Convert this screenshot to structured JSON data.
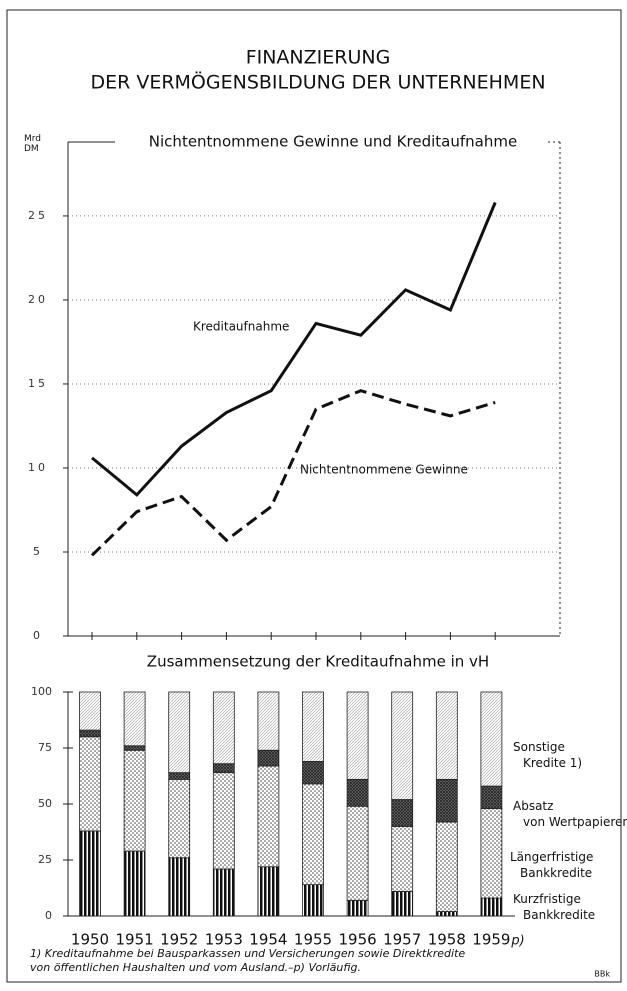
{
  "title": [
    "FINANZIERUNG",
    "DER VERMÖGENSBILDUNG DER UNTERNEHMEN"
  ],
  "footnote": [
    "1) Kreditaufnahme bei Bausparkassen und Versicherungen sowie Direktkredite",
    "von öffentlichen Haushalten und vom Ausland.–p) Vorläufig."
  ],
  "credit": "BBk",
  "chart_data": [
    {
      "type": "line",
      "title": "Nichtentnommene Gewinne und Kreditaufnahme",
      "ylabel": "Mrd DM",
      "categories": [
        "1950",
        "1951",
        "1952",
        "1953",
        "1954",
        "1955",
        "1956",
        "1957",
        "1958",
        "1959"
      ],
      "ylim": [
        0,
        29.4
      ],
      "yticks": [
        0,
        5,
        10,
        15,
        20,
        25
      ],
      "grid": true,
      "series": [
        {
          "name": "Kreditaufnahme",
          "color": "#111111",
          "dash": false,
          "values": [
            10.6,
            8.4,
            11.3,
            13.3,
            14.6,
            18.6,
            17.9,
            20.6,
            19.4,
            25.8
          ]
        },
        {
          "name": "Nichtentnommene Gewinne",
          "color": "#111111",
          "dash": true,
          "values": [
            4.8,
            7.4,
            8.3,
            5.7,
            7.7,
            13.5,
            14.6,
            13.8,
            13.1,
            13.9
          ]
        }
      ]
    },
    {
      "type": "bar",
      "stacked": true,
      "title": "Zusammensetzung der Kreditaufnahme in vH",
      "categories": [
        "1950",
        "1951",
        "1952",
        "1953",
        "1954",
        "1955",
        "1956",
        "1957",
        "1958",
        "1959"
      ],
      "category_note": "p)",
      "ylim": [
        0,
        100
      ],
      "yticks": [
        0,
        25,
        50,
        75,
        100
      ],
      "series": [
        {
          "name": "Kurzfristige Bankkredite",
          "color": "#111111",
          "pattern": "stripes",
          "values": [
            38,
            29,
            26,
            21,
            22,
            14,
            7,
            11,
            2,
            8
          ]
        },
        {
          "name": "Längerfristige Bankkredite",
          "color": "#444444",
          "pattern": "dots",
          "values": [
            42,
            45,
            35,
            43,
            45,
            45,
            42,
            29,
            40,
            40
          ]
        },
        {
          "name": "Absatz von Wertpapieren",
          "color": "#555555",
          "pattern": "crosshatch",
          "values": [
            3,
            2,
            3,
            4,
            7,
            10,
            12,
            12,
            19,
            10
          ]
        },
        {
          "name": "Sonstige Kredite 1)",
          "color": "#999999",
          "pattern": "hatch",
          "values": [
            17,
            24,
            36,
            32,
            26,
            31,
            39,
            48,
            39,
            42
          ]
        }
      ]
    }
  ]
}
